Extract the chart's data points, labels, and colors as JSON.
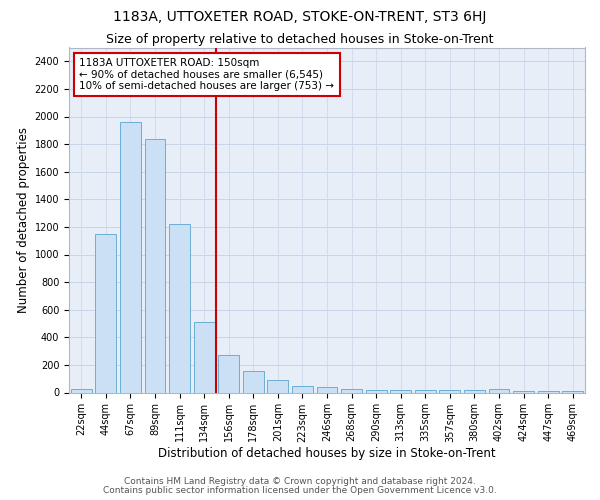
{
  "title": "1183A, UTTOXETER ROAD, STOKE-ON-TRENT, ST3 6HJ",
  "subtitle": "Size of property relative to detached houses in Stoke-on-Trent",
  "xlabel": "Distribution of detached houses by size in Stoke-on-Trent",
  "ylabel": "Number of detached properties",
  "footnote1": "Contains HM Land Registry data © Crown copyright and database right 2024.",
  "footnote2": "Contains public sector information licensed under the Open Government Licence v3.0.",
  "bar_labels": [
    "22sqm",
    "44sqm",
    "67sqm",
    "89sqm",
    "111sqm",
    "134sqm",
    "156sqm",
    "178sqm",
    "201sqm",
    "223sqm",
    "246sqm",
    "268sqm",
    "290sqm",
    "313sqm",
    "335sqm",
    "357sqm",
    "380sqm",
    "402sqm",
    "424sqm",
    "447sqm",
    "469sqm"
  ],
  "bar_values": [
    28,
    1150,
    1960,
    1840,
    1220,
    510,
    270,
    155,
    90,
    48,
    42,
    22,
    20,
    20,
    18,
    18,
    18,
    22,
    8,
    8,
    8
  ],
  "bar_color": "#cce0f5",
  "bar_edge_color": "#6baed6",
  "vline_color": "#cc0000",
  "annotation_text": "1183A UTTOXETER ROAD: 150sqm\n← 90% of detached houses are smaller (6,545)\n10% of semi-detached houses are larger (753) →",
  "annotation_box_color": "#ffffff",
  "annotation_box_edge": "#cc0000",
  "ylim": [
    0,
    2500
  ],
  "yticks": [
    0,
    200,
    400,
    600,
    800,
    1000,
    1200,
    1400,
    1600,
    1800,
    2000,
    2200,
    2400
  ],
  "grid_color": "#c8d4e8",
  "bg_color": "#e8eef8",
  "title_fontsize": 10,
  "subtitle_fontsize": 9,
  "axis_label_fontsize": 8.5,
  "tick_fontsize": 7,
  "annotation_fontsize": 7.5,
  "footnote_fontsize": 6.5
}
